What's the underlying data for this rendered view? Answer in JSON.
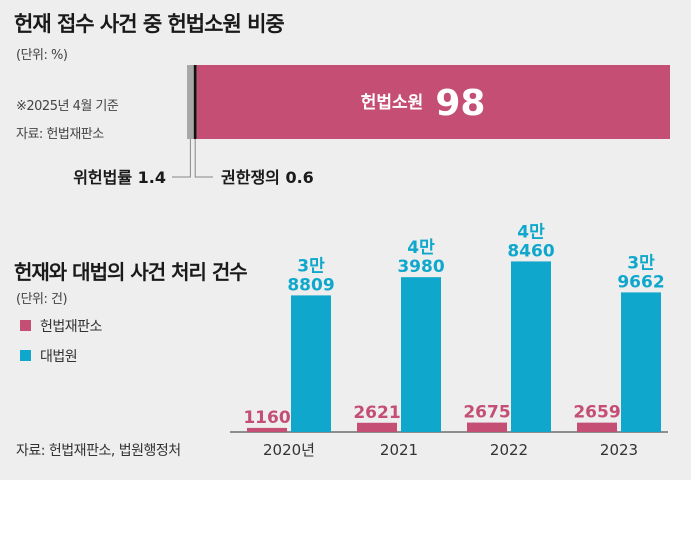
{
  "colors": {
    "pink": "#c44e74",
    "cyan": "#0fa8cc",
    "gray": "#a8a8a8",
    "black": "#111111",
    "bg": "#eeeeee"
  },
  "top": {
    "title": "헌재 접수 사건 중 헌법소원 비중",
    "unit": "(단위: %)",
    "note": "※2025년 4월 기준",
    "source": "자료: 헌법재판소",
    "segments": [
      {
        "label": "위헌법률",
        "value": "1.4"
      },
      {
        "label": "권한쟁의",
        "value": "0.6"
      },
      {
        "label": "헌법소원",
        "value": "98"
      }
    ]
  },
  "bottom": {
    "title": "헌재와 대법의 사건 처리 건수",
    "unit": "(단위: 건)",
    "source": "자료: 헌법재판소, 법원행정처"
  },
  "chart_data": [
    {
      "type": "bar",
      "title": "헌재 접수 사건 중 헌법소원 비중",
      "orientation": "horizontal-stacked",
      "categories": [
        "위헌법률",
        "권한쟁의",
        "헌법소원"
      ],
      "values": [
        1.4,
        0.6,
        98
      ]
    },
    {
      "type": "bar",
      "title": "헌재와 대법의 사건 처리 건수",
      "categories": [
        "2020년",
        "2021",
        "2022",
        "2023"
      ],
      "legend_position": "left",
      "series": [
        {
          "name": "헌법재판소",
          "values": [
            1160,
            2621,
            2675,
            2659
          ],
          "labels": [
            "1160",
            "2621",
            "2675",
            "2659"
          ]
        },
        {
          "name": "대법원",
          "values": [
            38809,
            43980,
            48460,
            39662
          ],
          "labels": [
            [
              "3만",
              "8809"
            ],
            [
              "4만",
              "3980"
            ],
            [
              "4만",
              "8460"
            ],
            [
              "3만",
              "9662"
            ]
          ]
        }
      ]
    }
  ]
}
